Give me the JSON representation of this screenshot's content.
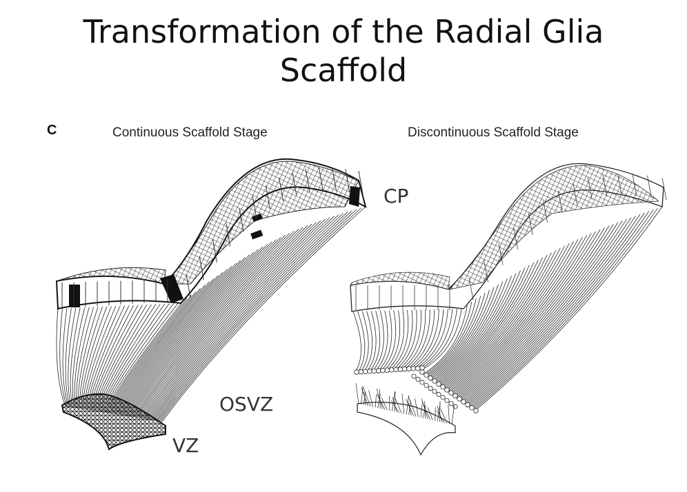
{
  "title": {
    "line1": "Transformation of the Radial Glia",
    "line2": "Scaffold"
  },
  "panel_letter": "C",
  "panels": {
    "left": {
      "title": "Continuous Scaffold Stage"
    },
    "right": {
      "title": "Discontinuous Scaffold Stage"
    }
  },
  "regions": {
    "cp": "CP",
    "osvz": "OSVZ",
    "vz": "VZ"
  },
  "colors": {
    "line": "#222222",
    "fill": "#ffffff",
    "dark": "#111111"
  }
}
